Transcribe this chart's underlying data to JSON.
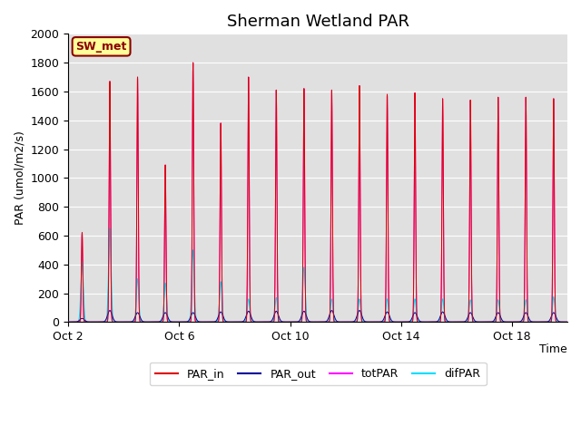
{
  "title": "Sherman Wetland PAR",
  "ylabel": "PAR (umol/m2/s)",
  "xlabel": "Time",
  "ylim": [
    0,
    2000
  ],
  "xtick_positions": [
    0,
    4,
    8,
    12,
    16
  ],
  "xtick_labels": [
    "Oct 2",
    "Oct 6",
    "Oct 10",
    "Oct 14",
    "Oct 18"
  ],
  "bg_color": "#e0e0e0",
  "fig_color": "#ffffff",
  "grid_color": "#ffffff",
  "annotation_text": "SW_met",
  "annotation_bg": "#ffff99",
  "annotation_border": "#8b0000",
  "legend_entries": [
    "PAR_in",
    "PAR_out",
    "totPAR",
    "difPAR"
  ],
  "line_colors": {
    "PAR_in": "#dd0000",
    "PAR_out": "#000099",
    "totPAR": "#ff00ff",
    "difPAR": "#00ddff"
  },
  "num_days": 18,
  "par_in_peaks": [
    620,
    1670,
    1700,
    1090,
    1800,
    1380,
    1700,
    1610,
    1620,
    1610,
    1640,
    1580,
    1590,
    1550,
    1540,
    1560,
    1560,
    1550
  ],
  "par_out_peaks": [
    25,
    80,
    65,
    65,
    65,
    70,
    75,
    75,
    75,
    80,
    80,
    70,
    65,
    70,
    65,
    65,
    65,
    65
  ],
  "totpar_peaks": [
    620,
    1670,
    1700,
    1090,
    1800,
    1380,
    1700,
    1610,
    1620,
    1610,
    1640,
    1580,
    1590,
    1550,
    1540,
    1560,
    1560,
    1550
  ],
  "difpar_peaks": [
    420,
    650,
    300,
    270,
    500,
    280,
    160,
    170,
    380,
    160,
    160,
    160,
    160,
    160,
    155,
    155,
    155,
    175
  ]
}
